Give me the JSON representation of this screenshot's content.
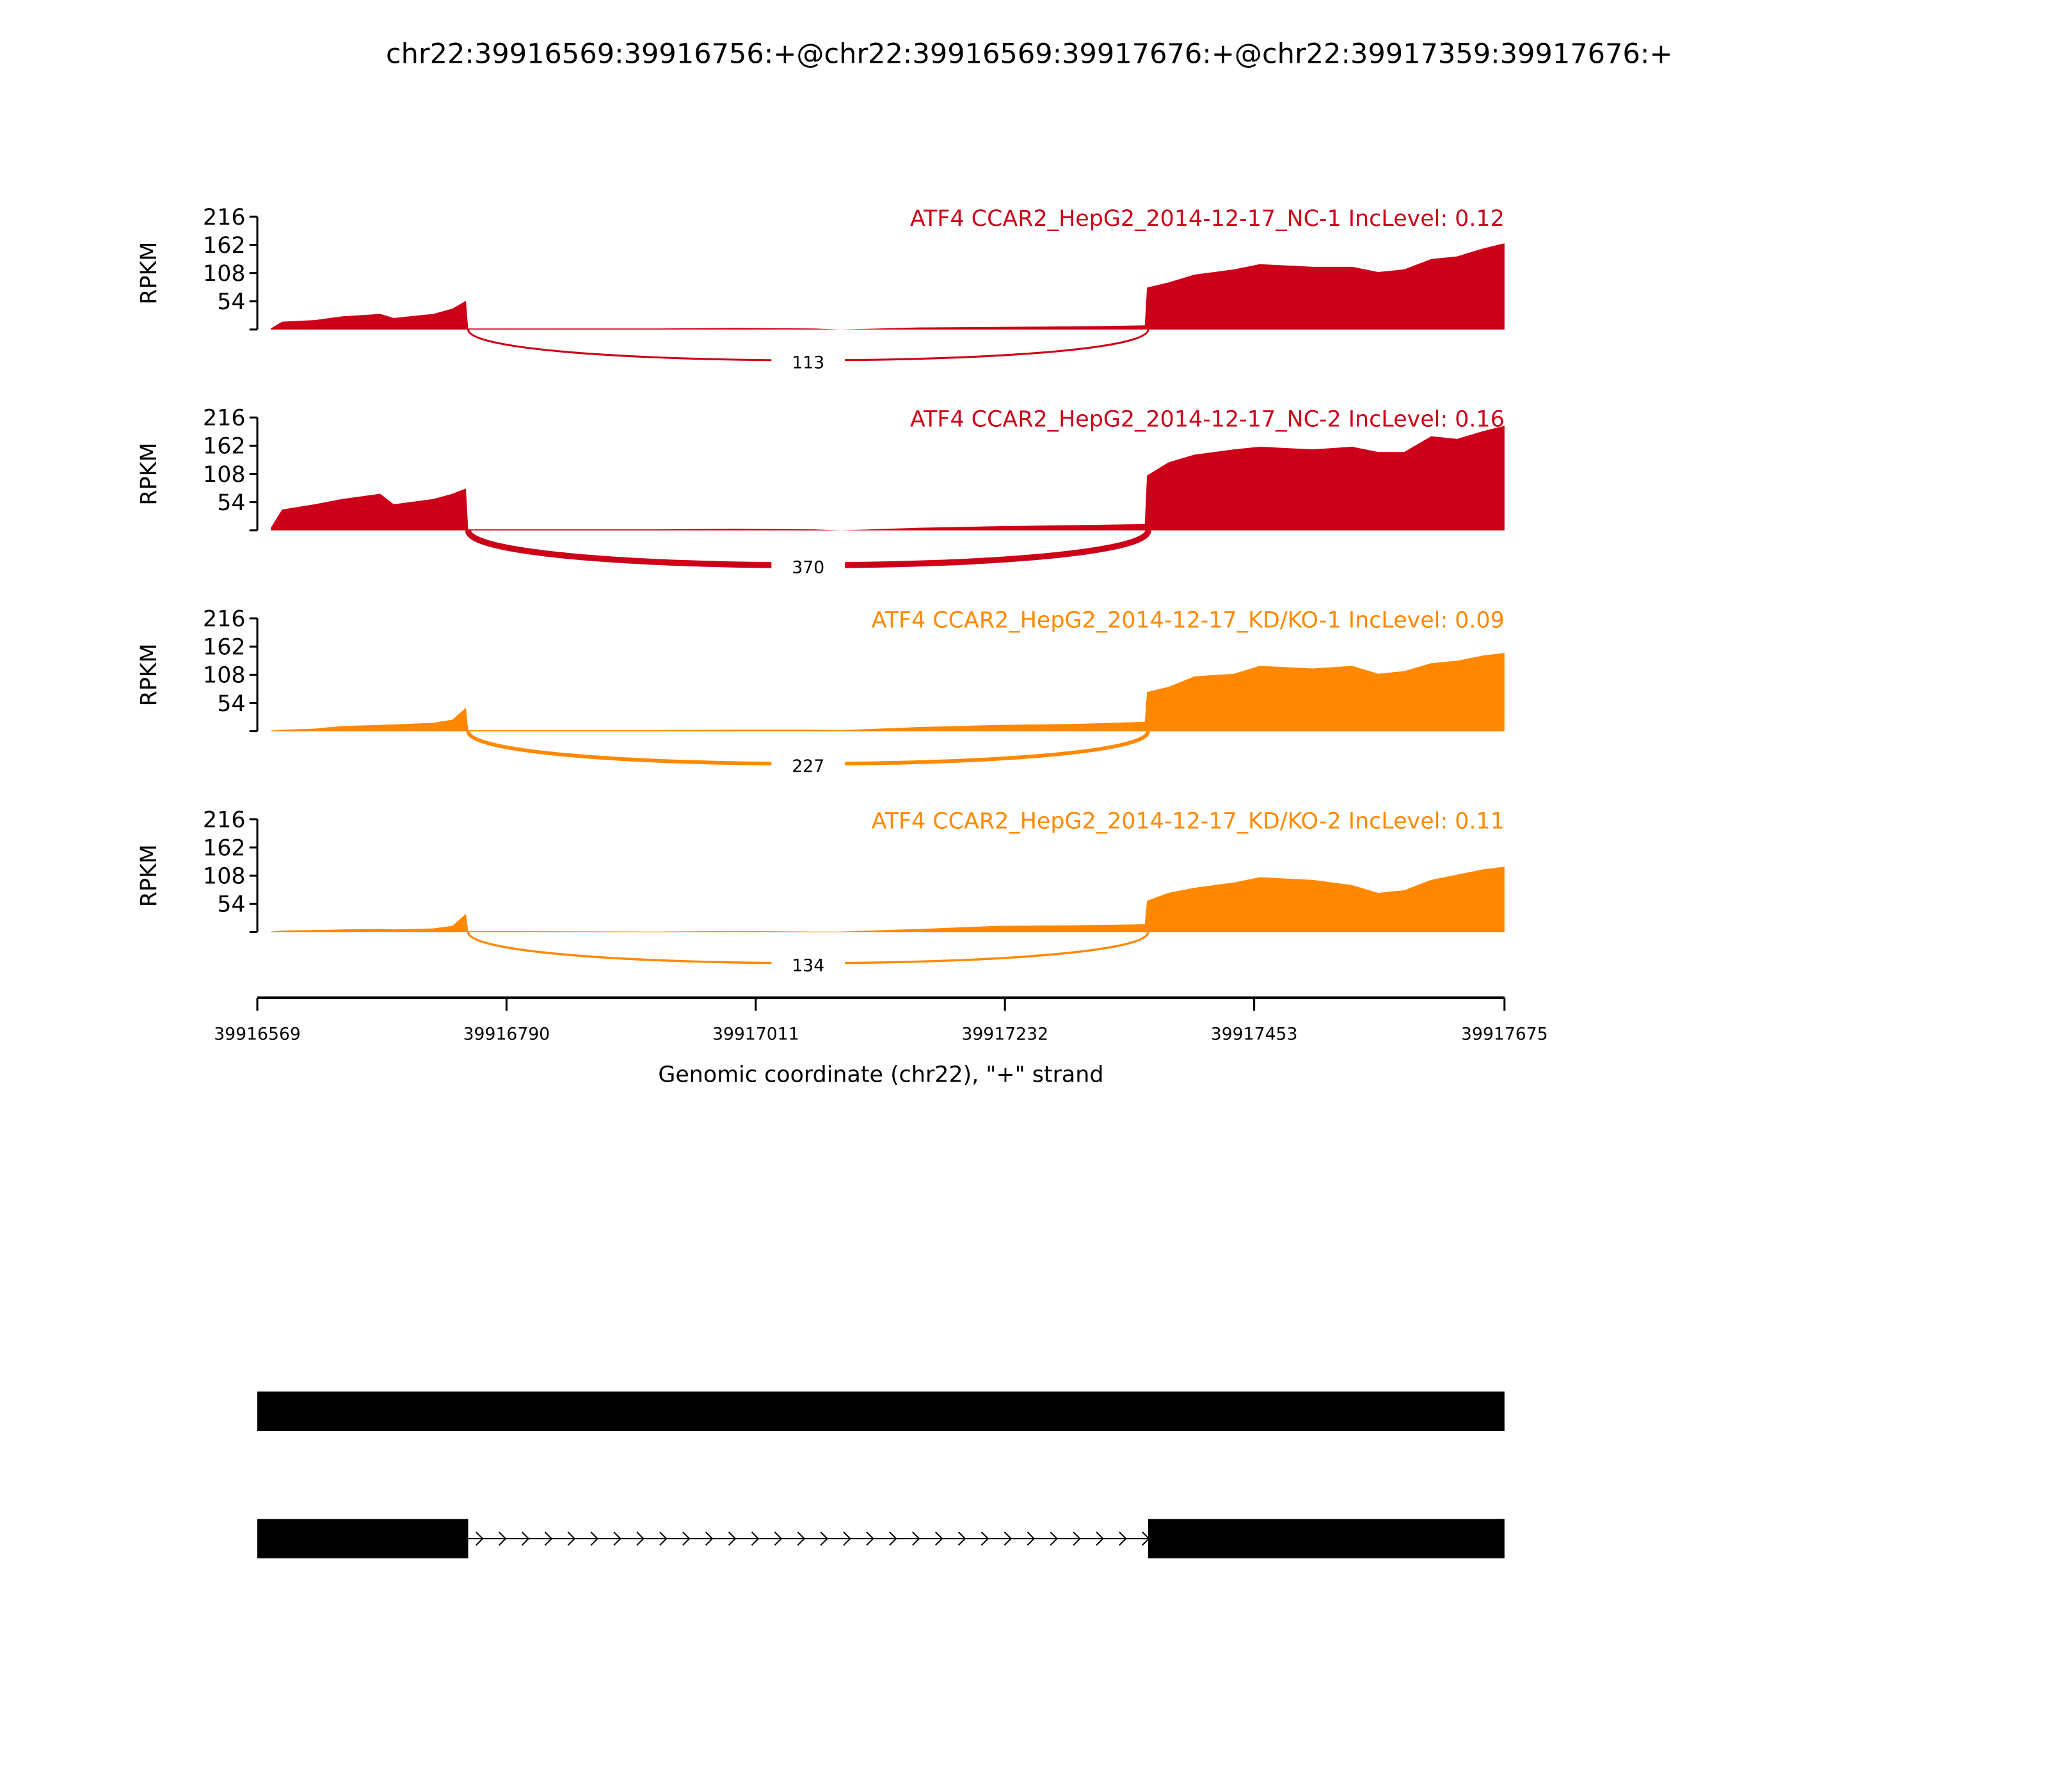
{
  "chart_data": {
    "type": "area",
    "title": "chr22:39916569:39916756:+@chr22:39916569:39917676:+@chr22:39917359:39917676:+",
    "xlabel": "Genomic coordinate (chr22), \"+\" strand",
    "ylabel": "RPKM",
    "xlim": [
      39916569,
      39917675
    ],
    "ylim": [
      0,
      216
    ],
    "x_ticks": [
      "39916569",
      "39916790",
      "39917011",
      "39917232",
      "39917453",
      "39917675"
    ],
    "y_ticks": [
      "54",
      "108",
      "162",
      "216"
    ],
    "exons": [
      [
        39916569,
        39916756
      ],
      [
        39917359,
        39917676
      ]
    ],
    "coverage_positions": [
      39916581,
      39916591,
      39916620,
      39916644,
      39916678,
      39916690,
      39916725,
      39916742,
      39916754,
      39916756,
      39916923,
      39916993,
      39917063,
      39917086,
      39917156,
      39917226,
      39917295,
      39917356,
      39917358,
      39917377,
      39917400,
      39917435,
      39917458,
      39917505,
      39917540,
      39917563,
      39917586,
      39917610,
      39917633,
      39917656,
      39917675
    ],
    "series": [
      {
        "name": "ATF4 CCAR2_HepG2_2014-12-17_NC-1 IncLevel: 0.12",
        "color": "#CC0018",
        "junction_count": "113",
        "coverage": [
          2,
          15,
          18,
          25,
          30,
          22,
          30,
          40,
          55,
          2,
          2,
          3,
          2,
          0,
          4,
          5,
          6,
          8,
          80,
          90,
          105,
          115,
          125,
          120,
          120,
          110,
          115,
          135,
          140,
          155,
          165
        ]
      },
      {
        "name": "ATF4 CCAR2_HepG2_2014-12-17_NC-2 IncLevel: 0.16",
        "color": "#CC0018",
        "junction_count": "370",
        "coverage": [
          5,
          40,
          50,
          60,
          70,
          50,
          60,
          70,
          80,
          2,
          2,
          3,
          2,
          0,
          5,
          8,
          10,
          12,
          105,
          130,
          145,
          155,
          160,
          155,
          160,
          150,
          150,
          180,
          175,
          190,
          200
        ]
      },
      {
        "name": "ATF4 CCAR2_HepG2_2014-12-17_KD/KO-1 IncLevel: 0.09",
        "color": "#FF8800",
        "junction_count": "227",
        "coverage": [
          1,
          3,
          5,
          10,
          12,
          13,
          16,
          22,
          45,
          2,
          2,
          3,
          3,
          2,
          8,
          12,
          14,
          18,
          75,
          85,
          105,
          110,
          125,
          120,
          125,
          110,
          115,
          130,
          135,
          145,
          150
        ]
      },
      {
        "name": "ATF4 CCAR2_HepG2_2014-12-17_KD/KO-2 IncLevel: 0.11",
        "color": "#FF8800",
        "junction_count": "134",
        "coverage": [
          1,
          3,
          4,
          5,
          6,
          5,
          7,
          12,
          35,
          2,
          1,
          2,
          1,
          1,
          6,
          12,
          13,
          15,
          60,
          75,
          85,
          95,
          105,
          100,
          90,
          75,
          80,
          100,
          110,
          120,
          125
        ]
      }
    ],
    "gene_models": [
      {
        "exons": [
          [
            39916569,
            39917676
          ]
        ]
      },
      {
        "exons": [
          [
            39916569,
            39916756
          ],
          [
            39917359,
            39917676
          ]
        ]
      }
    ]
  }
}
